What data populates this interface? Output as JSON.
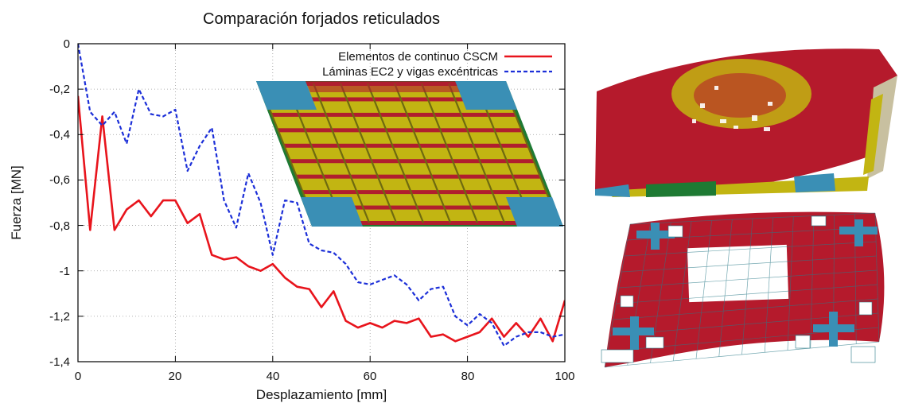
{
  "chart_data": {
    "type": "line",
    "title": "Comparación forjados reticulados",
    "xlabel": "Desplazamiento [mm]",
    "ylabel": "Fuerza [MN]",
    "xlim": [
      0,
      100
    ],
    "ylim": [
      -1.4,
      0
    ],
    "x_ticks": [
      "0",
      "20",
      "40",
      "60",
      "80",
      "100"
    ],
    "y_ticks": [
      "0",
      "-0,2",
      "-0,4",
      "-0,6",
      "-0,8",
      "-1",
      "-1,2",
      "-1,4"
    ],
    "grid": true,
    "legend_position": "top-right",
    "series": [
      {
        "name": "Elementos de continuo CSCM",
        "color": "#e8141c",
        "style": "solid",
        "x": [
          0,
          2.5,
          5,
          7.5,
          10,
          12.5,
          15,
          17.5,
          20,
          22.5,
          25,
          27.5,
          30,
          32.5,
          35,
          37.5,
          40,
          42.5,
          45,
          47.5,
          50,
          52.5,
          55,
          57.5,
          60,
          62.5,
          65,
          67.5,
          70,
          72.5,
          75,
          77.5,
          80,
          82.5,
          85,
          87.5,
          90,
          92.5,
          95,
          97.5,
          100
        ],
        "y": [
          -0.23,
          -0.82,
          -0.32,
          -0.82,
          -0.73,
          -0.69,
          -0.76,
          -0.69,
          -0.69,
          -0.79,
          -0.75,
          -0.93,
          -0.95,
          -0.94,
          -0.98,
          -1.0,
          -0.97,
          -1.03,
          -1.07,
          -1.08,
          -1.16,
          -1.09,
          -1.22,
          -1.25,
          -1.23,
          -1.25,
          -1.22,
          -1.23,
          -1.21,
          -1.29,
          -1.28,
          -1.31,
          -1.29,
          -1.27,
          -1.21,
          -1.29,
          -1.23,
          -1.29,
          -1.21,
          -1.31,
          -1.13
        ]
      },
      {
        "name": "Láminas EC2 y vigas excéntricas",
        "color": "#1c2fd8",
        "style": "dashed",
        "x": [
          0,
          2.5,
          5,
          7.5,
          10,
          12.5,
          15,
          17.5,
          20,
          22.5,
          25,
          27.5,
          30,
          32.5,
          35,
          37.5,
          40,
          42.5,
          45,
          47.5,
          50,
          52.5,
          55,
          57.5,
          60,
          62.5,
          65,
          67.5,
          70,
          72.5,
          75,
          77.5,
          80,
          82.5,
          85,
          87.5,
          90,
          92.5,
          95,
          97.5,
          100
        ],
        "y": [
          0.0,
          -0.3,
          -0.36,
          -0.3,
          -0.44,
          -0.2,
          -0.31,
          -0.32,
          -0.29,
          -0.56,
          -0.45,
          -0.37,
          -0.69,
          -0.81,
          -0.57,
          -0.7,
          -0.93,
          -0.69,
          -0.7,
          -0.88,
          -0.91,
          -0.92,
          -0.97,
          -1.05,
          -1.06,
          -1.04,
          -1.02,
          -1.06,
          -1.13,
          -1.08,
          -1.07,
          -1.2,
          -1.24,
          -1.19,
          -1.23,
          -1.33,
          -1.29,
          -1.27,
          -1.27,
          -1.29,
          -1.28
        ]
      }
    ]
  },
  "figures": {
    "inset": "grid-slab-model-3d",
    "deformed_top": "deformed-slab-3d-damage",
    "deformed_bottom": "deformed-slab-shell-mesh"
  }
}
